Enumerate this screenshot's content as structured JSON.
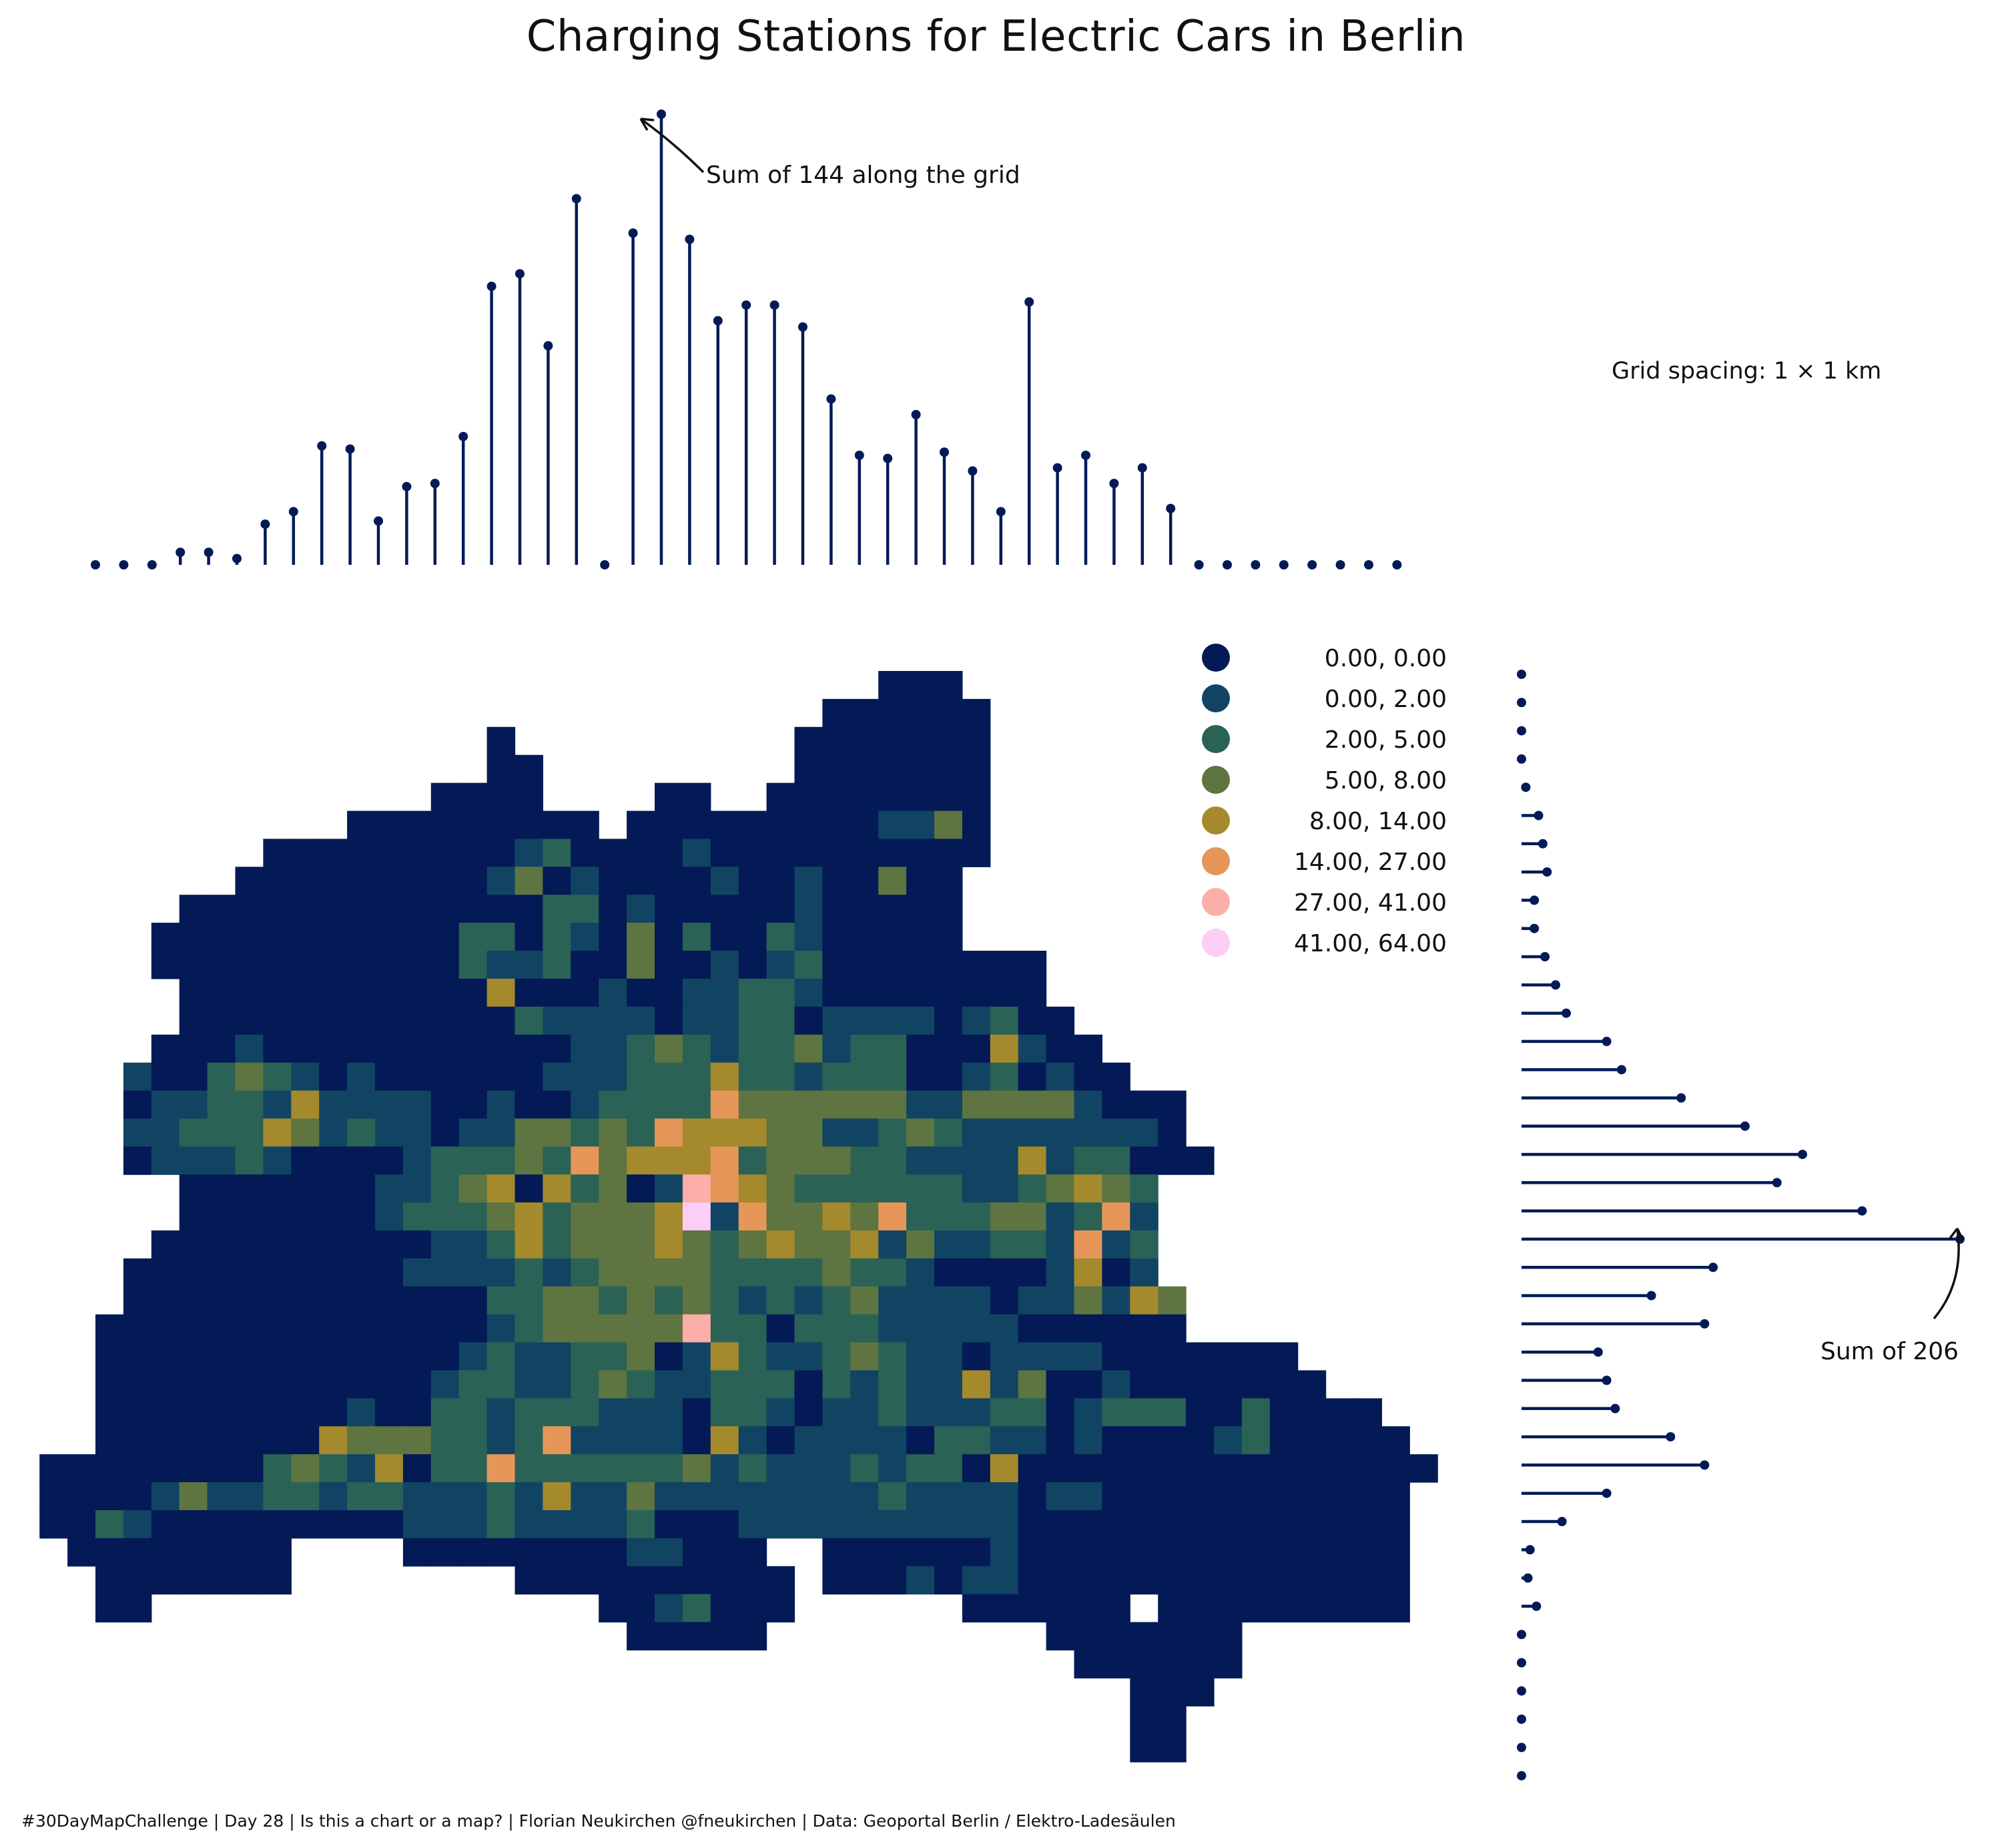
{
  "title": "Charging Stations for Electric Cars in Berlin",
  "grid_note": "Grid spacing: 1 × 1 km",
  "caption": "#30DayMapChallenge | Day 28 | Is this a chart or a map? | Florian Neukirchen @fneukirchen | Data: Geoportal Berlin / Elektro-Ladesäulen",
  "colors": {
    "stem": "#031a56",
    "bins": [
      "#031a56",
      "#114463",
      "#2a6256",
      "#5e7441",
      "#a48a2c",
      "#e59658",
      "#fcaea8",
      "#fbcdf7"
    ]
  },
  "legend": [
    {
      "label": "0.00,  0.00",
      "color": "#031a56"
    },
    {
      "label": "0.00,  2.00",
      "color": "#114463"
    },
    {
      "label": "2.00,  5.00",
      "color": "#2a6256"
    },
    {
      "label": "5.00,  8.00",
      "color": "#5e7441"
    },
    {
      "label": "8.00, 14.00",
      "color": "#a48a2c"
    },
    {
      "label": "14.00, 27.00",
      "color": "#e59658"
    },
    {
      "label": "27.00, 41.00",
      "color": "#fcaea8"
    },
    {
      "label": "41.00, 64.00",
      "color": "#fbcdf7"
    }
  ],
  "annotations": {
    "top": "Sum of 144 along the grid",
    "right": "Sum of 206"
  },
  "chart_data": [
    {
      "type": "lollipop",
      "orientation": "vertical",
      "description_axis": "column sums",
      "values": [
        0,
        0,
        0,
        4,
        4,
        2,
        13,
        17,
        38,
        37,
        14,
        25,
        26,
        41,
        89,
        93,
        70,
        117,
        0,
        106,
        144,
        104,
        78,
        83,
        83,
        76,
        53,
        35,
        34,
        48,
        36,
        30,
        17,
        84,
        31,
        35,
        26,
        31,
        18,
        0,
        0,
        0,
        0,
        0,
        0,
        0,
        0
      ]
    },
    {
      "type": "lollipop",
      "orientation": "horizontal",
      "description_axis": "row sums",
      "values": [
        0,
        0,
        0,
        0,
        2,
        8,
        10,
        12,
        6,
        6,
        11,
        16,
        21,
        40,
        47,
        75,
        105,
        132,
        120,
        160,
        206,
        90,
        61,
        86,
        36,
        40,
        44,
        70,
        86,
        40,
        19,
        4,
        3,
        7,
        0,
        0,
        0,
        0,
        0,
        0
      ]
    }
  ]
}
